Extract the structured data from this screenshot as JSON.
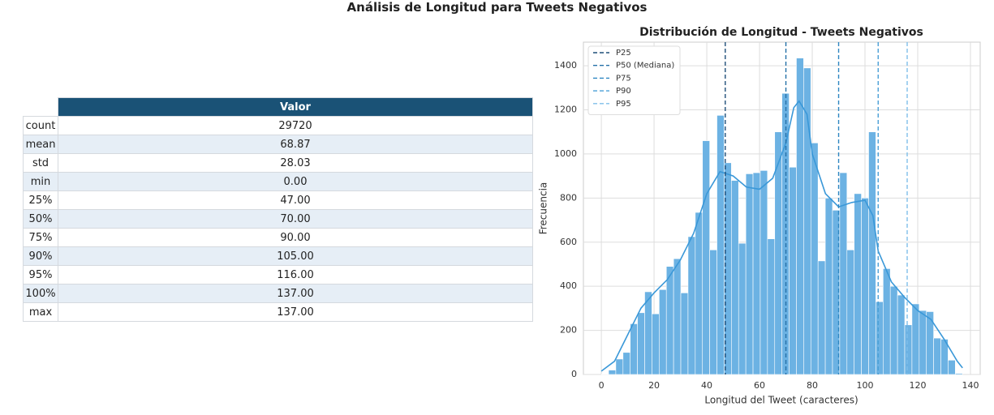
{
  "title": "Análisis de Longitud para Tweets Negativos",
  "table": {
    "header": "Valor",
    "rows": [
      [
        "count",
        "29720"
      ],
      [
        "mean",
        "68.87"
      ],
      [
        "std",
        "28.03"
      ],
      [
        "min",
        "0.00"
      ],
      [
        "25%",
        "47.00"
      ],
      [
        "50%",
        "70.00"
      ],
      [
        "75%",
        "90.00"
      ],
      [
        "90%",
        "105.00"
      ],
      [
        "95%",
        "116.00"
      ],
      [
        "100%",
        "137.00"
      ],
      [
        "max",
        "137.00"
      ]
    ]
  },
  "chart_data": {
    "type": "histogram",
    "title": "Distribución de Longitud - Tweets Negativos",
    "xlabel": "Longitud del Tweet (caracteres)",
    "ylabel": "Frecuencia",
    "bins": [
      0,
      2.74,
      5.48,
      8.22,
      10.96,
      13.7,
      16.44,
      19.18,
      21.92,
      24.66,
      27.4,
      30.14,
      32.88,
      35.62,
      38.36,
      41.1,
      43.84,
      46.58,
      49.32,
      52.06,
      54.8,
      57.54,
      60.28,
      63.02,
      65.76,
      68.5,
      71.24,
      73.98,
      76.72,
      79.46,
      82.2,
      84.94,
      87.68,
      90.42,
      93.16,
      95.9,
      98.64,
      101.38,
      104.12,
      106.86,
      109.6,
      112.34,
      115.08,
      117.82,
      120.56,
      123.3,
      126.04,
      128.78,
      131.52,
      134.26,
      137
    ],
    "counts": [
      2,
      20,
      70,
      100,
      230,
      280,
      375,
      275,
      385,
      490,
      525,
      370,
      625,
      735,
      1060,
      565,
      1175,
      960,
      880,
      595,
      910,
      915,
      925,
      615,
      1100,
      1275,
      940,
      1435,
      1390,
      1050,
      515,
      800,
      745,
      915,
      565,
      820,
      800,
      1100,
      330,
      480,
      400,
      360,
      225,
      320,
      290,
      285,
      165,
      160,
      65,
      5
    ],
    "color": "#6cb2e3",
    "kde": {
      "color": "#3a98d8",
      "x": [
        0,
        5,
        10,
        15,
        20,
        25,
        30,
        35,
        40,
        45,
        50,
        55,
        60,
        65,
        70,
        73,
        75,
        78,
        80,
        85,
        90,
        95,
        100,
        103,
        105,
        110,
        115,
        120,
        125,
        130,
        135,
        137
      ],
      "values": [
        15,
        60,
        180,
        300,
        370,
        430,
        520,
        640,
        820,
        920,
        900,
        850,
        840,
        890,
        1050,
        1210,
        1240,
        1180,
        1000,
        820,
        760,
        780,
        790,
        720,
        560,
        420,
        350,
        290,
        250,
        160,
        60,
        30
      ]
    },
    "vlines": [
      {
        "name": "P25",
        "value": 47,
        "color": "#1f4e79"
      },
      {
        "name": "P50 (Mediana)",
        "value": 70,
        "color": "#2470a8"
      },
      {
        "name": "P75",
        "value": 90,
        "color": "#2e86c1"
      },
      {
        "name": "P90",
        "value": 105,
        "color": "#4a9fd6"
      },
      {
        "name": "P95",
        "value": 116,
        "color": "#7fbfea"
      }
    ],
    "legend": "upper left",
    "grid": true,
    "xlim": [
      -6.8,
      143.7
    ],
    "xticks": [
      0,
      20,
      40,
      60,
      80,
      100,
      120,
      140
    ],
    "ylim": [
      0,
      1507
    ],
    "yticks": [
      0,
      200,
      400,
      600,
      800,
      1000,
      1200,
      1400
    ]
  }
}
